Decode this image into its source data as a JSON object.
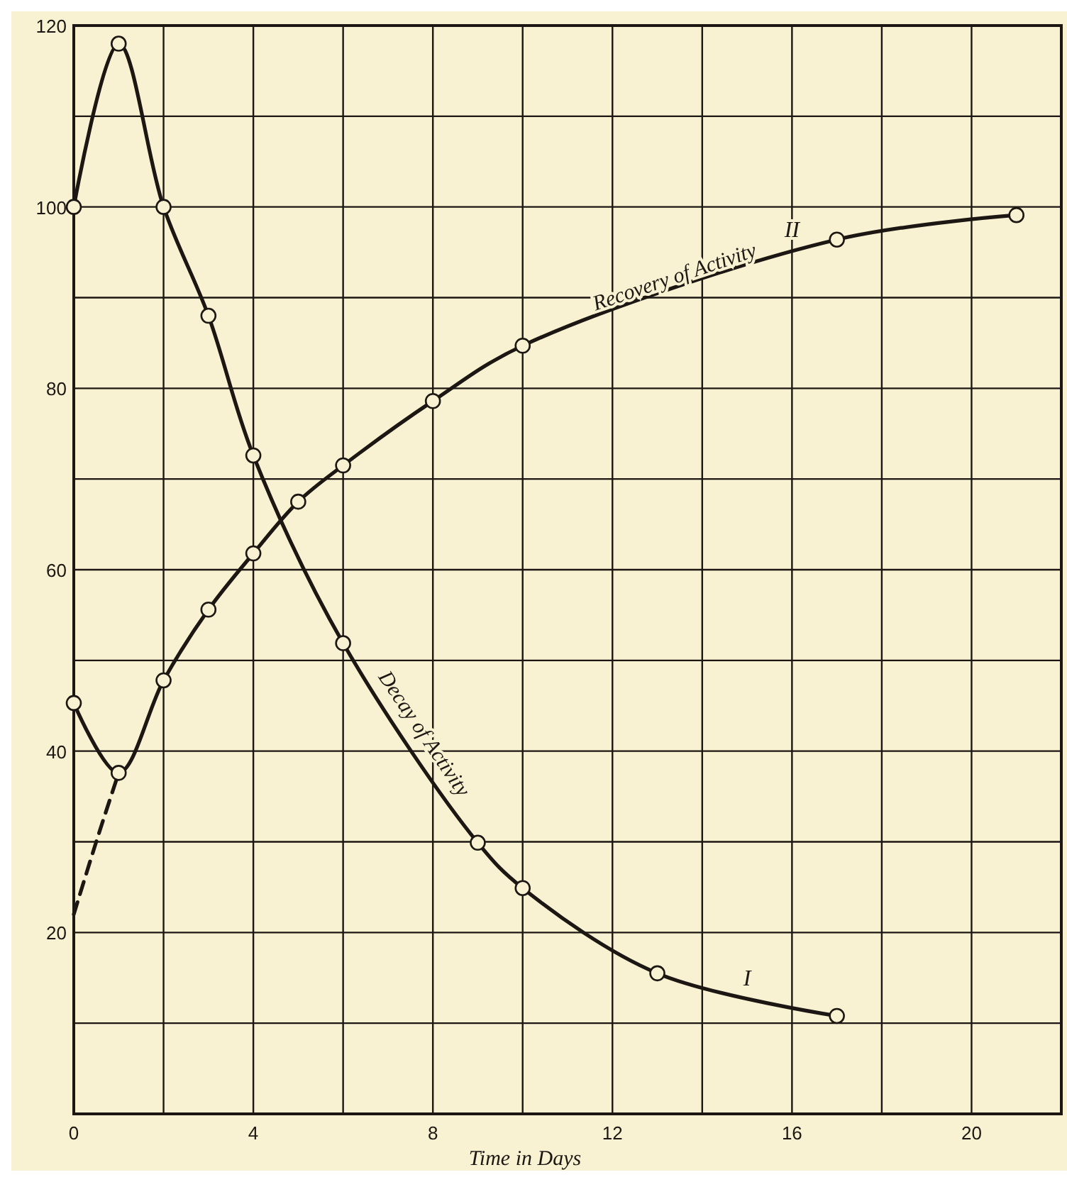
{
  "chart_data": {
    "type": "line",
    "xlabel": "Time in Days",
    "xlim": [
      0,
      22
    ],
    "ylim": [
      0,
      120
    ],
    "xticks": [
      0,
      {
        "value": 2,
        "label": null
      },
      4,
      {
        "value": 6,
        "label": null
      },
      8,
      {
        "value": 10,
        "label": null
      },
      12,
      {
        "value": 14,
        "label": null
      },
      16,
      {
        "value": 18,
        "label": null
      },
      20,
      {
        "value": 22,
        "label": null
      }
    ],
    "yticks": [
      {
        "value": 10,
        "label": null
      },
      20,
      {
        "value": 30,
        "label": null
      },
      40,
      {
        "value": 50,
        "label": null
      },
      60,
      {
        "value": 70,
        "label": null
      },
      80,
      {
        "value": 90,
        "label": null
      },
      100,
      {
        "value": 110,
        "label": null
      },
      120
    ],
    "grid": true,
    "series": [
      {
        "name": "Decay of Activity",
        "color": "#1c1712",
        "marker": "circle",
        "line_style": "solid",
        "x": [
          0,
          1,
          2,
          3,
          4,
          6,
          9,
          10,
          13,
          17
        ],
        "values": [
          100,
          118,
          100,
          88,
          72.6,
          51.9,
          29.9,
          24.9,
          15.5,
          10.8
        ]
      },
      {
        "name": "Recovery of Activity",
        "color": "#1c1712",
        "marker": "circle",
        "line_style": "solid",
        "x": [
          0,
          1,
          2,
          3,
          4,
          5,
          6,
          8,
          10,
          17,
          21
        ],
        "values": [
          45.3,
          37.6,
          47.8,
          55.6,
          61.8,
          67.5,
          71.5,
          78.6,
          84.7,
          96.4,
          99.1
        ]
      },
      {
        "color": "#1c1712",
        "marker": "none",
        "line_style": "dashed",
        "x": [
          0,
          0.5,
          1
        ],
        "values": [
          22,
          30,
          37.6
        ]
      }
    ],
    "annotations": [
      {
        "text": "I",
        "x": 15,
        "y": 13.1
      },
      {
        "text": "II",
        "x": 16,
        "y": 95.6
      }
    ]
  }
}
